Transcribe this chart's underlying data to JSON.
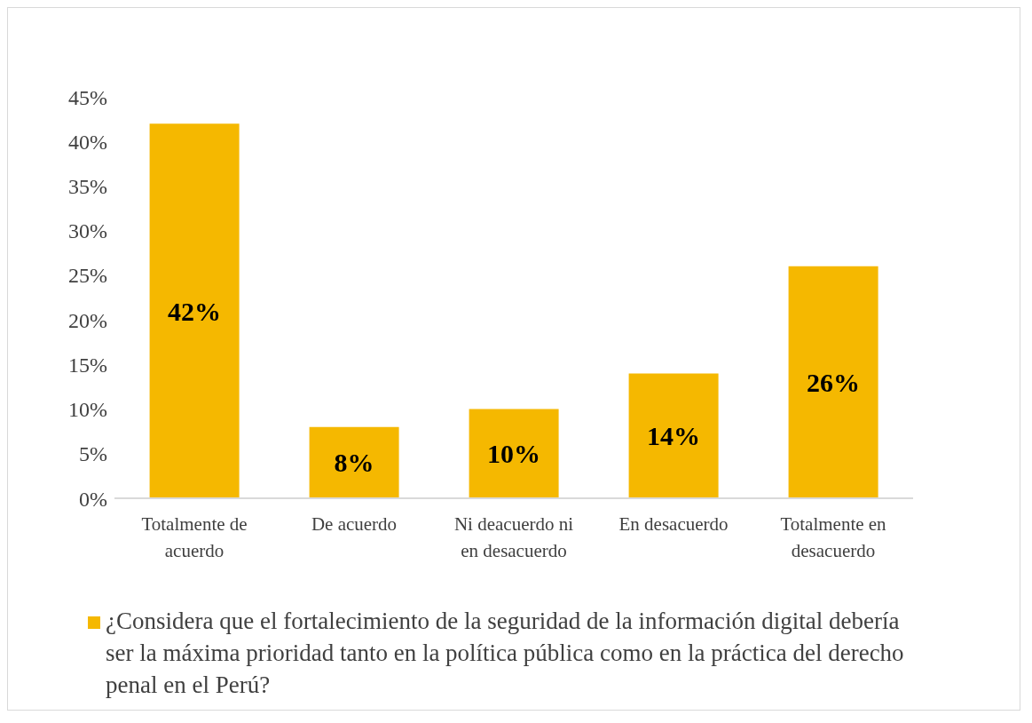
{
  "chart_data": {
    "type": "bar",
    "categories": [
      "Totalmente de acuerdo",
      "De acuerdo",
      "Ni deacuerdo ni en desacuerdo",
      "En desacuerdo",
      "Totalmente en desacuerdo"
    ],
    "series": [
      {
        "name": "¿Considera que el fortalecimiento de la seguridad de la información digital debería ser la máxima prioridad tanto en la política pública como en la práctica del derecho penal en el Perú?",
        "color": "#f5b800",
        "values": [
          42,
          8,
          10,
          14,
          26
        ],
        "value_labels": [
          "42%",
          "8%",
          "10%",
          "14%",
          "26%"
        ]
      }
    ],
    "ylim": [
      0,
      45
    ],
    "yticks": [
      {
        "value": 0,
        "label": "0%"
      },
      {
        "value": 5,
        "label": "5%"
      },
      {
        "value": 10,
        "label": "10%"
      },
      {
        "value": 15,
        "label": "15%"
      },
      {
        "value": 20,
        "label": "20%"
      },
      {
        "value": 25,
        "label": "25%"
      },
      {
        "value": 30,
        "label": "30%"
      },
      {
        "value": 35,
        "label": "35%"
      },
      {
        "value": 40,
        "label": "40%"
      },
      {
        "value": 45,
        "label": "45%"
      }
    ],
    "grid": false,
    "legend": "bottom"
  }
}
